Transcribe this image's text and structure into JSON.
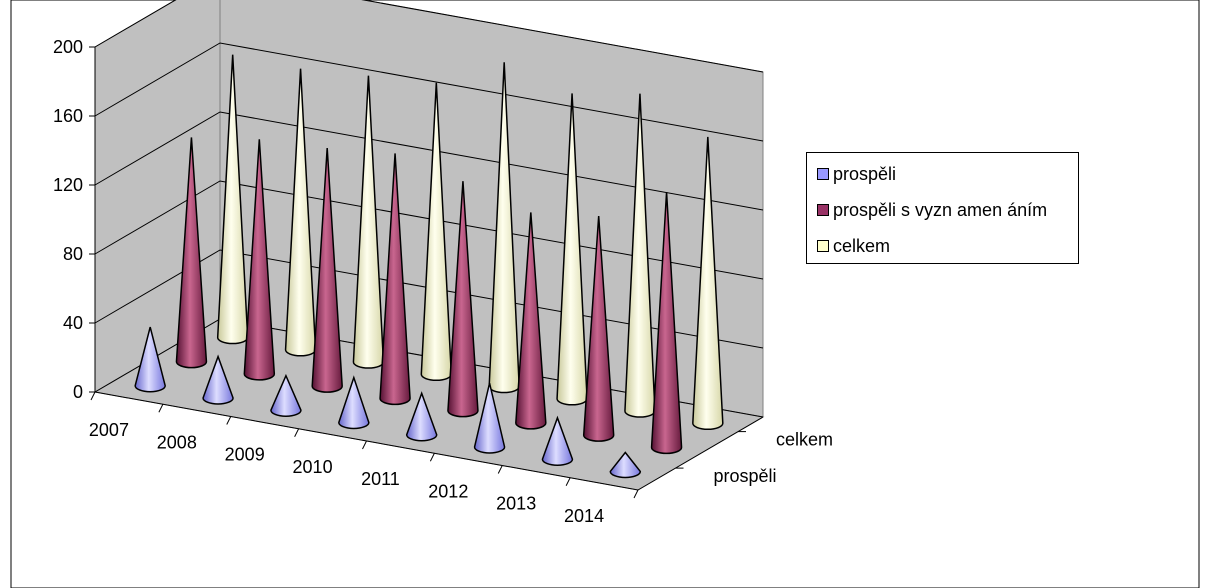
{
  "chart_data": {
    "type": "bar",
    "subtype": "3d-cone",
    "categories": [
      "2007",
      "2008",
      "2009",
      "2010",
      "2011",
      "2012",
      "2013",
      "2014"
    ],
    "series": [
      {
        "name": "prospěli",
        "values": [
          34,
          24,
          20,
          26,
          24,
          37,
          24,
          11
        ]
      },
      {
        "name": "prospěli s vyznamenáním",
        "values": [
          130,
          136,
          138,
          142,
          133,
          122,
          127,
          148
        ]
      },
      {
        "name": "celkem",
        "values": [
          164,
          163,
          166,
          169,
          188,
          177,
          184,
          166
        ]
      }
    ],
    "depth_labels": [
      "prospěli",
      "celkem"
    ],
    "ylim": [
      0,
      200
    ],
    "yticks": [
      0,
      40,
      80,
      120,
      160,
      200
    ],
    "grid": true,
    "legend_position": "right",
    "colors": [
      "#9999ff",
      "#993366",
      "#ffffcc"
    ],
    "wall_color": "#c0c0c0"
  },
  "legend": {
    "items": [
      {
        "label": "prospěli",
        "color": "#9999ff"
      },
      {
        "label": "prospěli s vyzn amen áním",
        "color": "#993366"
      },
      {
        "label": "celkem",
        "color": "#ffffcc"
      }
    ]
  }
}
